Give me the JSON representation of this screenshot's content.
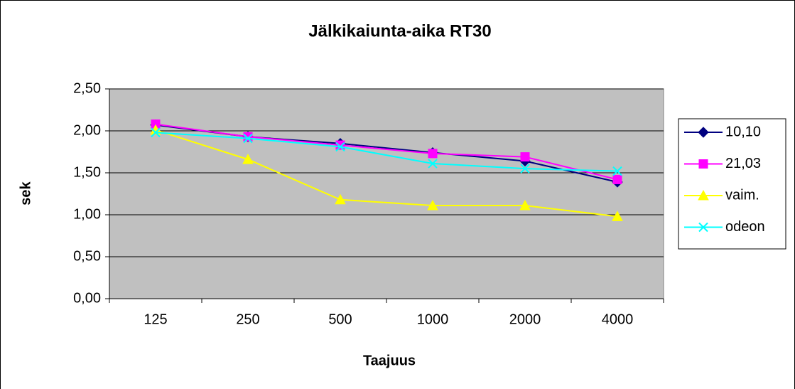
{
  "chart_data": {
    "type": "line",
    "title": "Jälkikaiunta-aika RT30",
    "x_label": "Taajuus",
    "y_label": "sek",
    "categories": [
      "125",
      "250",
      "500",
      "1000",
      "2000",
      "4000"
    ],
    "series": [
      {
        "name": "10,10",
        "color": "#000080",
        "marker": "diamond",
        "values": [
          2.07,
          1.93,
          1.85,
          1.74,
          1.64,
          1.39
        ]
      },
      {
        "name": "21,03",
        "color": "#ff00ff",
        "marker": "square",
        "values": [
          2.08,
          1.93,
          1.83,
          1.73,
          1.69,
          1.42
        ]
      },
      {
        "name": "vaim.",
        "color": "#ffff00",
        "marker": "triangle",
        "values": [
          2.01,
          1.66,
          1.18,
          1.11,
          1.11,
          0.98
        ]
      },
      {
        "name": "odeon",
        "color": "#00ffff",
        "marker": "x",
        "values": [
          1.98,
          1.91,
          1.81,
          1.61,
          1.55,
          1.52
        ]
      }
    ],
    "ylim": [
      0,
      2.5
    ],
    "yticks": [
      {
        "value": 0,
        "label": "0,00"
      },
      {
        "value": 0.5,
        "label": "0,50"
      },
      {
        "value": 1,
        "label": "1,00"
      },
      {
        "value": 1.5,
        "label": "1,50"
      },
      {
        "value": 2,
        "label": "2,00"
      },
      {
        "value": 2.5,
        "label": "2,50"
      }
    ],
    "grid": true,
    "plot_background": "#c0c0c0",
    "legend": "right"
  }
}
